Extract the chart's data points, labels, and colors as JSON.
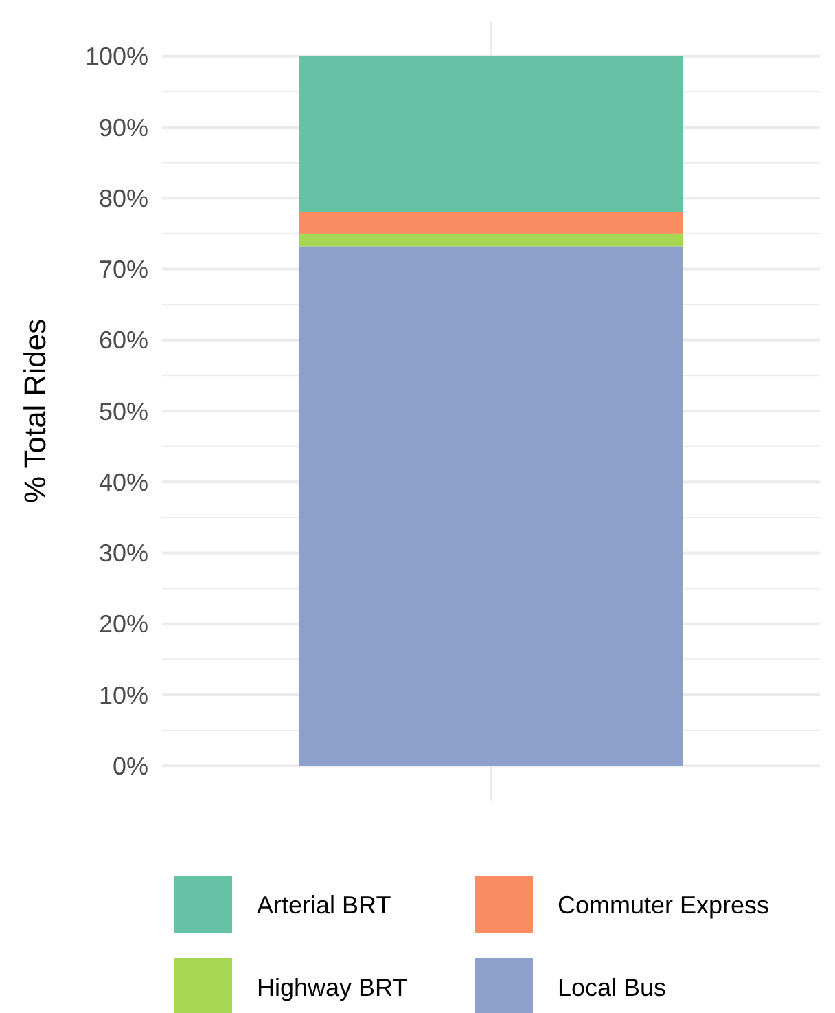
{
  "chart_data": {
    "type": "bar",
    "stacked": true,
    "ylabel": "% Total Rides",
    "categories": [
      null
    ],
    "series": [
      {
        "name": "Local Bus",
        "color": "#8da0cb",
        "values": [
          73.2
        ]
      },
      {
        "name": "Highway BRT",
        "color": "#a6d854",
        "values": [
          1.8
        ]
      },
      {
        "name": "Commuter Express",
        "color": "#fc8d62",
        "values": [
          3.0
        ]
      },
      {
        "name": "Arterial BRT",
        "color": "#66c2a5",
        "values": [
          22.0
        ]
      }
    ],
    "ylim": [
      -5,
      105
    ],
    "yticks": [
      {
        "value": 0,
        "label": "0%"
      },
      {
        "value": 5,
        "label": null
      },
      {
        "value": 10,
        "label": "10%"
      },
      {
        "value": 15,
        "label": null
      },
      {
        "value": 20,
        "label": "20%"
      },
      {
        "value": 25,
        "label": null
      },
      {
        "value": 30,
        "label": "30%"
      },
      {
        "value": 35,
        "label": null
      },
      {
        "value": 40,
        "label": "40%"
      },
      {
        "value": 45,
        "label": null
      },
      {
        "value": 50,
        "label": "50%"
      },
      {
        "value": 55,
        "label": null
      },
      {
        "value": 60,
        "label": "60%"
      },
      {
        "value": 65,
        "label": null
      },
      {
        "value": 70,
        "label": "70%"
      },
      {
        "value": 75,
        "label": null
      },
      {
        "value": 80,
        "label": "80%"
      },
      {
        "value": 85,
        "label": null
      },
      {
        "value": 90,
        "label": "90%"
      },
      {
        "value": 95,
        "label": null
      },
      {
        "value": 100,
        "label": "100%"
      }
    ],
    "grid": true,
    "legend": "bottom"
  }
}
